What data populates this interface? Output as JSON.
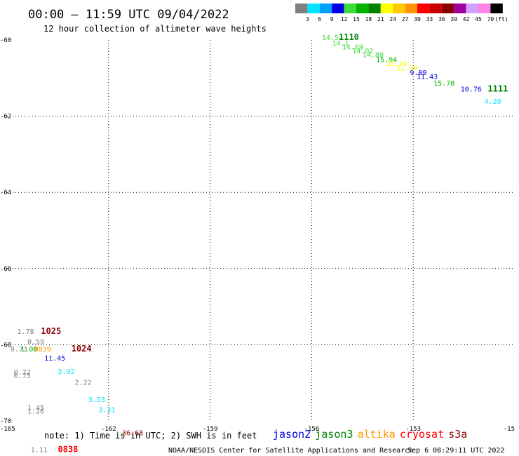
{
  "header": {
    "title": "00:00 – 11:59 UTC 09/04/2022",
    "subtitle": "12 hour collection of altimeter wave heights"
  },
  "colorbar": {
    "labels": [
      "3",
      "6",
      "9",
      "12",
      "15",
      "18",
      "21",
      "24",
      "27",
      "30",
      "33",
      "36",
      "39",
      "42",
      "45",
      "70"
    ],
    "unit": "(ft)",
    "colors": [
      "#808080",
      "#00e5ff",
      "#00a0ff",
      "#0000e6",
      "#3cdc3c",
      "#00b400",
      "#008200",
      "#ffff00",
      "#ffc800",
      "#ff9600",
      "#ff0000",
      "#c80000",
      "#8c0000",
      "#a000a0",
      "#d2a0ff",
      "#ff82e6",
      "#000000"
    ]
  },
  "chart_data": {
    "type": "scatter",
    "xlim": [
      -165,
      -150
    ],
    "ylim": [
      -70,
      -60
    ],
    "xticks": [
      "-165",
      "-162",
      "-159",
      "-156",
      "-153",
      "-15"
    ],
    "yticks": [
      "-60",
      "-62",
      "-64",
      "-66",
      "-68",
      "-70"
    ],
    "grid": true,
    "points": [
      {
        "x": -155.7,
        "y": -60.0,
        "label": "14.54",
        "color": "#3cdc3c"
      },
      {
        "x": -155.4,
        "y": -60.15,
        "label": "14.1",
        "color": "#3cdc3c"
      },
      {
        "x": -155.1,
        "y": -60.25,
        "label": "14.69",
        "color": "#3cdc3c"
      },
      {
        "x": -154.8,
        "y": -60.35,
        "label": "14.02",
        "color": "#3cdc3c"
      },
      {
        "x": -154.5,
        "y": -60.45,
        "label": "14.80",
        "color": "#3cdc3c"
      },
      {
        "x": -154.1,
        "y": -60.58,
        "label": "15.94",
        "color": "#00b400"
      },
      {
        "x": -153.8,
        "y": -60.68,
        "label": "22.24",
        "color": "#ffff00"
      },
      {
        "x": -153.5,
        "y": -60.8,
        "label": "21.39",
        "color": "#ffff00"
      },
      {
        "x": -153.1,
        "y": -60.92,
        "label": "9.09",
        "color": "#0000e6"
      },
      {
        "x": -152.9,
        "y": -61.02,
        "label": "11.43",
        "color": "#0000e6"
      },
      {
        "x": -152.4,
        "y": -61.2,
        "label": "15.78",
        "color": "#00b400"
      },
      {
        "x": -151.6,
        "y": -61.35,
        "label": "10.76",
        "color": "#0000e6"
      },
      {
        "x": -150.9,
        "y": -61.68,
        "label": "4.20",
        "color": "#00e5ff"
      },
      {
        "x": -164.7,
        "y": -67.72,
        "label": "1.78",
        "color": "#808080"
      },
      {
        "x": -164.4,
        "y": -67.98,
        "label": "0.59",
        "color": "#808080"
      },
      {
        "x": -164.9,
        "y": -68.18,
        "label": "0.73",
        "color": "#808080"
      },
      {
        "x": -164.6,
        "y": -68.18,
        "label": "1.00",
        "color": "#00b400"
      },
      {
        "x": -164.2,
        "y": -68.18,
        "label": "0839",
        "color": "#ff9600"
      },
      {
        "x": -163.9,
        "y": -68.42,
        "label": "11.45",
        "color": "#0000e6"
      },
      {
        "x": -164.8,
        "y": -68.78,
        "label": "0.72",
        "color": "#808080"
      },
      {
        "x": -164.8,
        "y": -68.88,
        "label": "0.75",
        "color": "#808080"
      },
      {
        "x": -163.5,
        "y": -68.77,
        "label": "3.92",
        "color": "#00e5ff"
      },
      {
        "x": -163.0,
        "y": -69.05,
        "label": "2.22",
        "color": "#808080"
      },
      {
        "x": -162.6,
        "y": -69.5,
        "label": "3.53",
        "color": "#00e5ff"
      },
      {
        "x": -162.3,
        "y": -69.77,
        "label": "3.31",
        "color": "#00e5ff"
      },
      {
        "x": -164.4,
        "y": -69.71,
        "label": "1.45",
        "color": "#808080"
      },
      {
        "x": -164.4,
        "y": -69.81,
        "label": "1.26",
        "color": "#808080"
      },
      {
        "x": -161.6,
        "y": -70.38,
        "label": "36.68",
        "color": "#8c0000"
      },
      {
        "x": -164.3,
        "y": -70.82,
        "label": "1.11",
        "color": "#808080"
      }
    ],
    "time_labels": [
      {
        "x": -155.2,
        "y": -60.0,
        "label": "1110",
        "color": "#008200"
      },
      {
        "x": -150.8,
        "y": -61.35,
        "label": "1111",
        "color": "#008200"
      },
      {
        "x": -164.0,
        "y": -67.72,
        "label": "1025",
        "color": "#8c0000"
      },
      {
        "x": -163.1,
        "y": -68.18,
        "label": "1024",
        "color": "#8c0000"
      },
      {
        "x": -163.5,
        "y": -70.82,
        "label": "0838",
        "color": "#ff0000"
      }
    ],
    "legend": [
      {
        "name": "jason2",
        "color": "#0000e6"
      },
      {
        "name": "jason3",
        "color": "#008200"
      },
      {
        "name": "altika",
        "color": "#ff9600"
      },
      {
        "name": "cryosat",
        "color": "#ff0000"
      },
      {
        "name": "s3a",
        "color": "#8c0000"
      }
    ],
    "legend_position": "bottom"
  },
  "footer": {
    "note": "note: 1) Time is in UTC; 2) SWH is in feet",
    "credit": "NOAA/NESDIS Center for Satellite Applications and Research",
    "timestamp": "Sep  6 08:29:11 UTC 2022"
  }
}
